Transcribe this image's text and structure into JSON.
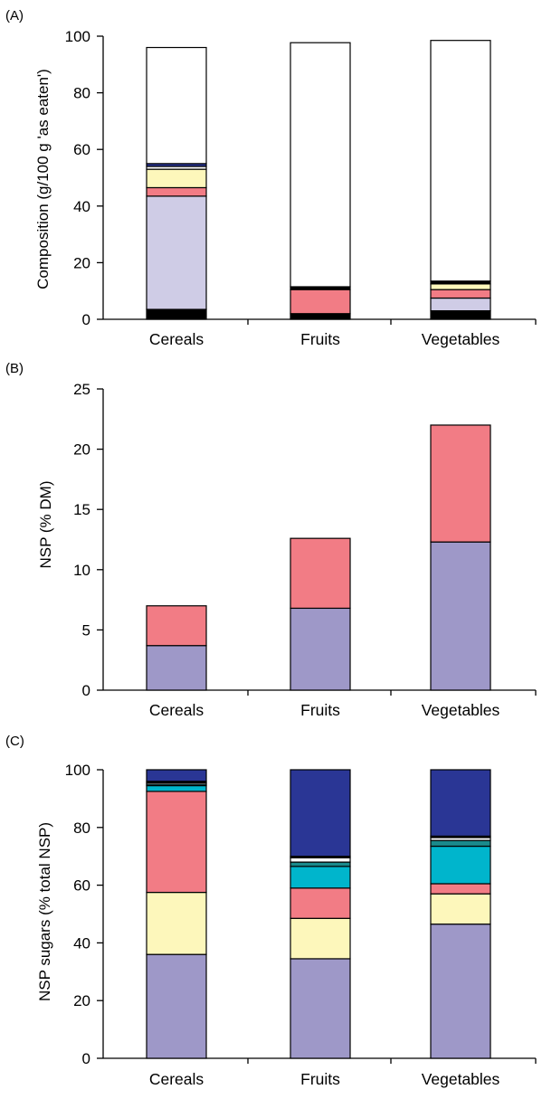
{
  "chart_data": [
    {
      "panel_label": "(A)",
      "type": "bar",
      "stacked": true,
      "ylabel": "Composition (g/100 g 'as eaten')",
      "ylim": [
        0,
        100
      ],
      "yticks": [
        "0",
        "20",
        "40",
        "60",
        "80",
        "100"
      ],
      "categories": [
        "Cereals",
        "Fruits",
        "Vegetables"
      ],
      "segments": [
        {
          "color": "#000000",
          "values": [
            3.5,
            2.0,
            3.0
          ]
        },
        {
          "color": "#cfcce6",
          "values": [
            40.0,
            0.0,
            4.5
          ]
        },
        {
          "color": "#f27c85",
          "values": [
            3.0,
            8.5,
            3.0
          ]
        },
        {
          "color": "#fdf7bb",
          "values": [
            6.5,
            0.0,
            2.0
          ]
        },
        {
          "color": "#ffffff",
          "values": [
            1.0,
            0.0,
            0.0
          ]
        },
        {
          "color": "#2a3695",
          "values": [
            1.0,
            0.0,
            0.0
          ]
        },
        {
          "color": "#000000",
          "values": [
            0.0,
            1.0,
            1.0
          ]
        },
        {
          "color": "#ffffff",
          "values": [
            41.0,
            86.2,
            85.0
          ]
        }
      ]
    },
    {
      "panel_label": "(B)",
      "type": "bar",
      "stacked": true,
      "ylabel": "NSP (% DM)",
      "ylim": [
        0,
        25
      ],
      "yticks": [
        "0",
        "5",
        "10",
        "15",
        "20",
        "25"
      ],
      "categories": [
        "Cereals",
        "Fruits",
        "Vegetables"
      ],
      "segments": [
        {
          "color": "#9e98c8",
          "values": [
            3.7,
            6.8,
            12.3
          ]
        },
        {
          "color": "#f27c85",
          "values": [
            3.3,
            5.8,
            9.7
          ]
        }
      ]
    },
    {
      "panel_label": "(C)",
      "type": "bar",
      "stacked": true,
      "ylabel": "NSP sugars (% total NSP)",
      "ylim": [
        0,
        100
      ],
      "yticks": [
        "0",
        "20",
        "40",
        "60",
        "80",
        "100"
      ],
      "categories": [
        "Cereals",
        "Fruits",
        "Vegetables"
      ],
      "segments": [
        {
          "color": "#9e98c8",
          "values": [
            36.0,
            34.5,
            46.5
          ]
        },
        {
          "color": "#fdf7bb",
          "values": [
            21.5,
            14.0,
            10.5
          ]
        },
        {
          "color": "#f27c85",
          "values": [
            35.0,
            10.5,
            3.5
          ]
        },
        {
          "color": "#00b5cc",
          "values": [
            2.0,
            7.5,
            13.0
          ]
        },
        {
          "color": "#1a8a8c",
          "values": [
            0.5,
            1.5,
            2.0
          ]
        },
        {
          "color": "#ffffff",
          "values": [
            0.5,
            1.5,
            1.0
          ]
        },
        {
          "color": "#000000",
          "values": [
            0.5,
            0.5,
            0.5
          ]
        },
        {
          "color": "#2a3695",
          "values": [
            4.0,
            30.0,
            23.0
          ]
        }
      ]
    }
  ]
}
